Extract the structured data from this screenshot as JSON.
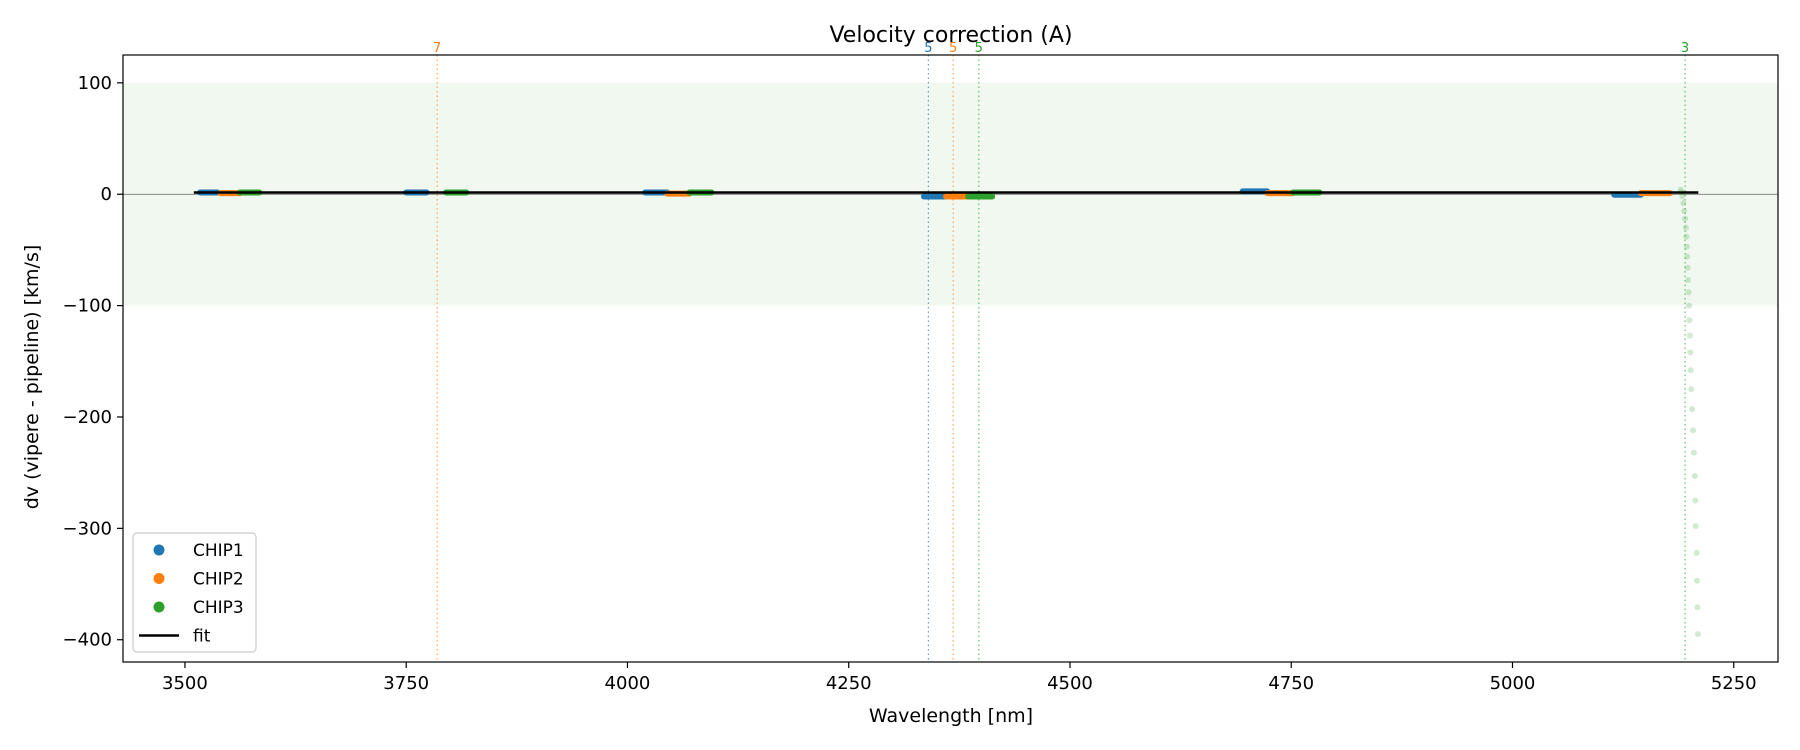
{
  "chart_data": {
    "type": "scatter",
    "title": "Velocity correction (A)",
    "xlabel": "Wavelength [nm]",
    "ylabel": "dv (vipere - pipeline) [km/s]",
    "xlim": [
      3430,
      5300
    ],
    "ylim": [
      -420,
      125
    ],
    "xticks": [
      3500,
      3750,
      4000,
      4250,
      4500,
      4750,
      5000,
      5250
    ],
    "yticks": [
      100,
      0,
      -100,
      -200,
      -300,
      -400
    ],
    "band": [
      -100,
      100
    ],
    "colors": {
      "CHIP1": "#1f77b4",
      "CHIP2": "#ff7f0e",
      "CHIP3": "#2ca02c",
      "fit": "#000000",
      "band": "#2ca02c"
    },
    "legend": {
      "position": "lower-left",
      "entries": [
        {
          "label": "CHIP1",
          "kind": "marker",
          "color": "#1f77b4"
        },
        {
          "label": "CHIP2",
          "kind": "marker",
          "color": "#ff7f0e"
        },
        {
          "label": "CHIP3",
          "kind": "marker",
          "color": "#2ca02c"
        },
        {
          "label": "fit",
          "kind": "line",
          "color": "#000000"
        }
      ]
    },
    "series": [
      {
        "name": "CHIP1",
        "color": "#1f77b4",
        "segments": [
          {
            "x0": 3517,
            "x1": 3537,
            "y": 1.5
          },
          {
            "x0": 3750,
            "x1": 3773,
            "y": 1.5
          },
          {
            "x0": 4020,
            "x1": 4045,
            "y": 1.5
          },
          {
            "x0": 4335,
            "x1": 4360,
            "y": -2
          },
          {
            "x0": 4695,
            "x1": 4723,
            "y": 2.5
          },
          {
            "x0": 5115,
            "x1": 5145,
            "y": -0.5
          }
        ]
      },
      {
        "name": "CHIP2",
        "color": "#ff7f0e",
        "segments": [
          {
            "x0": 3540,
            "x1": 3562,
            "y": 1.0
          },
          {
            "x0": 4045,
            "x1": 4070,
            "y": 0.5
          },
          {
            "x0": 4360,
            "x1": 4385,
            "y": -2
          },
          {
            "x0": 4723,
            "x1": 4752,
            "y": 1.0
          },
          {
            "x0": 5145,
            "x1": 5178,
            "y": 1.0
          }
        ]
      },
      {
        "name": "CHIP3",
        "color": "#2ca02c",
        "segments": [
          {
            "x0": 3562,
            "x1": 3584,
            "y": 1.5
          },
          {
            "x0": 3795,
            "x1": 3818,
            "y": 1.5
          },
          {
            "x0": 4070,
            "x1": 4095,
            "y": 1.5
          },
          {
            "x0": 4385,
            "x1": 4412,
            "y": -2
          },
          {
            "x0": 4752,
            "x1": 4782,
            "y": 1.5
          }
        ]
      }
    ],
    "outliers": {
      "series": "CHIP3",
      "points": [
        [
          5190,
          4
        ],
        [
          5191,
          2
        ],
        [
          5192,
          -2
        ],
        [
          5193,
          -8
        ],
        [
          5194,
          -15
        ],
        [
          5195,
          -22
        ],
        [
          5196,
          -30
        ],
        [
          5196.5,
          -38
        ],
        [
          5197,
          -47
        ],
        [
          5197.5,
          -56
        ],
        [
          5198,
          -66
        ],
        [
          5198.5,
          -77
        ],
        [
          5199,
          -88
        ],
        [
          5199.5,
          -100
        ],
        [
          5200,
          -113
        ],
        [
          5200.5,
          -127
        ],
        [
          5201,
          -142
        ],
        [
          5201.5,
          -158
        ],
        [
          5202,
          -175
        ],
        [
          5203,
          -193
        ],
        [
          5204,
          -212
        ],
        [
          5205,
          -232
        ],
        [
          5206,
          -253
        ],
        [
          5206.5,
          -275
        ],
        [
          5207,
          -298
        ],
        [
          5208,
          -322
        ],
        [
          5208.5,
          -347
        ],
        [
          5209,
          -371
        ],
        [
          5209.5,
          -395
        ]
      ]
    },
    "fit": {
      "x": [
        3510,
        5210
      ],
      "y": [
        1.5,
        1.5
      ]
    },
    "order_markers": [
      {
        "x": 3785,
        "label": "7",
        "color": "#ff7f0e"
      },
      {
        "x": 4340,
        "label": "5",
        "color": "#1f77b4"
      },
      {
        "x": 4368,
        "label": "5",
        "color": "#ff7f0e"
      },
      {
        "x": 4397,
        "label": "5",
        "color": "#2ca02c"
      },
      {
        "x": 5195,
        "label": "3",
        "color": "#2ca02c"
      }
    ]
  }
}
